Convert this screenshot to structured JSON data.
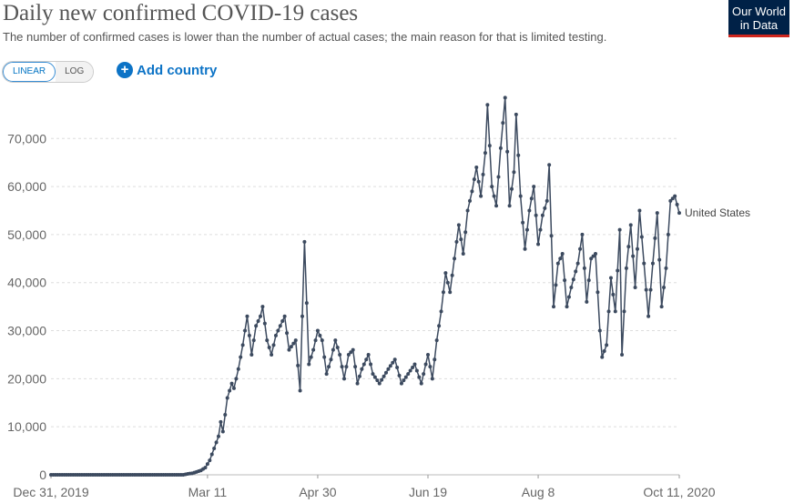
{
  "header": {
    "title": "Daily new confirmed COVID-19 cases",
    "subtitle": "The number of confirmed cases is lower than the number of actual cases; the main reason for that is limited testing.",
    "logo_line1": "Our World",
    "logo_line2": "in Data"
  },
  "controls": {
    "linear_label": "LINEAR",
    "log_label": "LOG",
    "add_country_label": "Add country",
    "scale_selected": "linear"
  },
  "colors": {
    "line": "#3c4a5f",
    "logo_bg": "#002147",
    "logo_accent": "#ce261e",
    "link": "#0c73c6"
  },
  "chart_data": {
    "type": "line",
    "title": "Daily new confirmed COVID-19 cases",
    "x_start": "2019-12-31",
    "x_end": "2020-10-11",
    "x_tick_labels": [
      "Dec 31, 2019",
      "Mar 11",
      "Apr 30",
      "Jun 19",
      "Aug 8",
      "Oct 11, 2020"
    ],
    "y_tick_labels": [
      "0",
      "10,000",
      "20,000",
      "30,000",
      "40,000",
      "50,000",
      "60,000",
      "70,000"
    ],
    "ylim": [
      0,
      78000
    ],
    "grid": "horizontal dashed",
    "series": [
      {
        "name": "United States",
        "color": "#3c4a5f",
        "points": [
          [
            "2019-12-31",
            0
          ],
          [
            "2020-02-29",
            0
          ],
          [
            "2020-03-02",
            200
          ],
          [
            "2020-03-04",
            300
          ],
          [
            "2020-03-06",
            600
          ],
          [
            "2020-03-08",
            900
          ],
          [
            "2020-03-10",
            1500
          ],
          [
            "2020-03-12",
            3000
          ],
          [
            "2020-03-14",
            5500
          ],
          [
            "2020-03-16",
            8000
          ],
          [
            "2020-03-17",
            11000
          ],
          [
            "2020-03-18",
            9000
          ],
          [
            "2020-03-20",
            16000
          ],
          [
            "2020-03-22",
            19000
          ],
          [
            "2020-03-23",
            18000
          ],
          [
            "2020-03-25",
            22000
          ],
          [
            "2020-03-27",
            27000
          ],
          [
            "2020-03-29",
            33000
          ],
          [
            "2020-03-31",
            25000
          ],
          [
            "2020-04-02",
            31000
          ],
          [
            "2020-04-04",
            33000
          ],
          [
            "2020-04-05",
            35000
          ],
          [
            "2020-04-07",
            28000
          ],
          [
            "2020-04-09",
            25000
          ],
          [
            "2020-04-11",
            29000
          ],
          [
            "2020-04-13",
            31000
          ],
          [
            "2020-04-15",
            33000
          ],
          [
            "2020-04-17",
            26000
          ],
          [
            "2020-04-20",
            28000
          ],
          [
            "2020-04-22",
            17500
          ],
          [
            "2020-04-24",
            48500
          ],
          [
            "2020-04-26",
            23000
          ],
          [
            "2020-04-28",
            26000
          ],
          [
            "2020-04-30",
            30000
          ],
          [
            "2020-05-02",
            28000
          ],
          [
            "2020-05-04",
            21000
          ],
          [
            "2020-05-06",
            24000
          ],
          [
            "2020-05-08",
            28000
          ],
          [
            "2020-05-10",
            25000
          ],
          [
            "2020-05-12",
            20000
          ],
          [
            "2020-05-14",
            25000
          ],
          [
            "2020-05-16",
            26000
          ],
          [
            "2020-05-18",
            19000
          ],
          [
            "2020-05-20",
            22000
          ],
          [
            "2020-05-23",
            25000
          ],
          [
            "2020-05-25",
            21000
          ],
          [
            "2020-05-28",
            19000
          ],
          [
            "2020-06-01",
            22000
          ],
          [
            "2020-06-04",
            24000
          ],
          [
            "2020-06-07",
            19000
          ],
          [
            "2020-06-10",
            21000
          ],
          [
            "2020-06-13",
            23000
          ],
          [
            "2020-06-16",
            19000
          ],
          [
            "2020-06-19",
            25000
          ],
          [
            "2020-06-21",
            20000
          ],
          [
            "2020-06-23",
            28000
          ],
          [
            "2020-06-25",
            34000
          ],
          [
            "2020-06-27",
            42000
          ],
          [
            "2020-06-29",
            38000
          ],
          [
            "2020-07-01",
            45000
          ],
          [
            "2020-07-03",
            52000
          ],
          [
            "2020-07-05",
            46000
          ],
          [
            "2020-07-07",
            55000
          ],
          [
            "2020-07-09",
            59000
          ],
          [
            "2020-07-11",
            64000
          ],
          [
            "2020-07-13",
            58000
          ],
          [
            "2020-07-15",
            67000
          ],
          [
            "2020-07-16",
            77000
          ],
          [
            "2020-07-18",
            60000
          ],
          [
            "2020-07-20",
            56000
          ],
          [
            "2020-07-22",
            68000
          ],
          [
            "2020-07-24",
            78500
          ],
          [
            "2020-07-26",
            56000
          ],
          [
            "2020-07-28",
            63000
          ],
          [
            "2020-07-29",
            75000
          ],
          [
            "2020-07-31",
            58000
          ],
          [
            "2020-08-02",
            47000
          ],
          [
            "2020-08-04",
            55000
          ],
          [
            "2020-08-06",
            60000
          ],
          [
            "2020-08-08",
            48000
          ],
          [
            "2020-08-10",
            54000
          ],
          [
            "2020-08-12",
            57000
          ],
          [
            "2020-08-13",
            64500
          ],
          [
            "2020-08-15",
            35000
          ],
          [
            "2020-08-17",
            44000
          ],
          [
            "2020-08-19",
            46000
          ],
          [
            "2020-08-21",
            35000
          ],
          [
            "2020-08-23",
            39000
          ],
          [
            "2020-08-26",
            44000
          ],
          [
            "2020-08-28",
            50000
          ],
          [
            "2020-08-30",
            36000
          ],
          [
            "2020-09-01",
            45000
          ],
          [
            "2020-09-03",
            46000
          ],
          [
            "2020-09-05",
            30000
          ],
          [
            "2020-09-06",
            24500
          ],
          [
            "2020-09-08",
            27000
          ],
          [
            "2020-09-10",
            41000
          ],
          [
            "2020-09-12",
            34000
          ],
          [
            "2020-09-14",
            51000
          ],
          [
            "2020-09-15",
            25000
          ],
          [
            "2020-09-17",
            43000
          ],
          [
            "2020-09-19",
            52000
          ],
          [
            "2020-09-21",
            39000
          ],
          [
            "2020-09-23",
            55000
          ],
          [
            "2020-09-25",
            44000
          ],
          [
            "2020-09-27",
            33000
          ],
          [
            "2020-09-29",
            44000
          ],
          [
            "2020-10-01",
            54500
          ],
          [
            "2020-10-03",
            35000
          ],
          [
            "2020-10-05",
            43000
          ],
          [
            "2020-10-07",
            57000
          ],
          [
            "2020-10-09",
            58000
          ],
          [
            "2020-10-11",
            54500
          ]
        ]
      }
    ]
  }
}
